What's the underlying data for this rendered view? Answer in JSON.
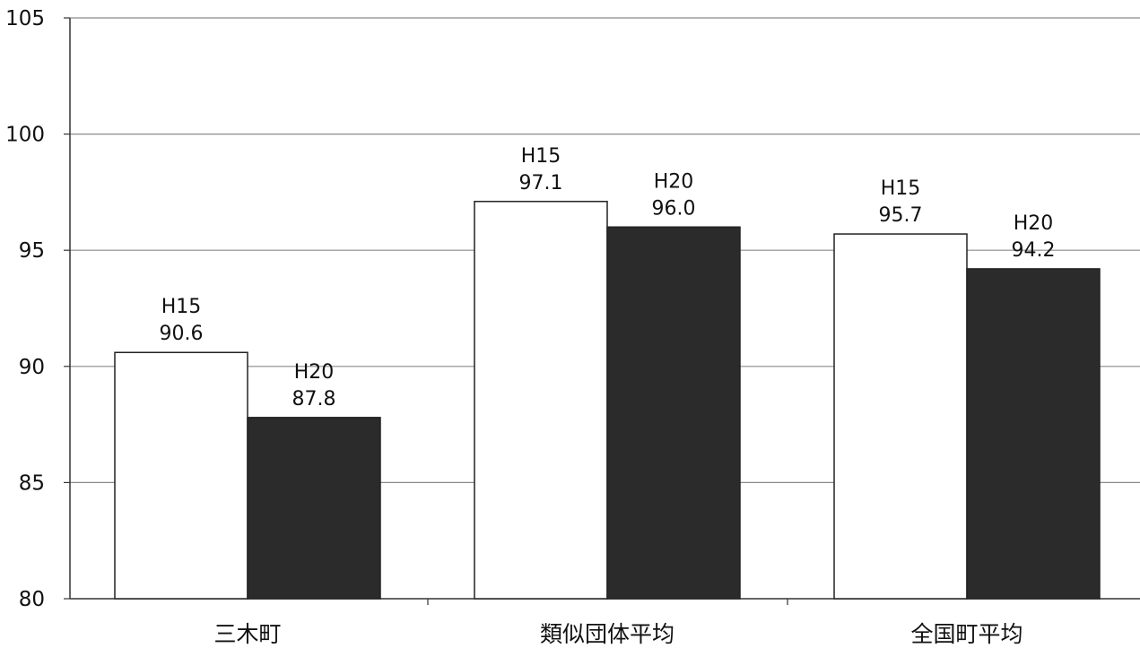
{
  "chart_data": {
    "type": "bar",
    "categories": [
      "三木町",
      "類似団体平均",
      "全国町平均"
    ],
    "series": [
      {
        "name": "H15",
        "values": [
          90.6,
          97.1,
          95.7
        ],
        "color": "#ffffff"
      },
      {
        "name": "H20",
        "values": [
          87.8,
          96.0,
          94.2
        ],
        "color": "#2b2b2b"
      }
    ],
    "data_labels": [
      [
        "H15",
        "90.6",
        "H20",
        "87.8"
      ],
      [
        "H15",
        "97.1",
        "H20",
        "96.0"
      ],
      [
        "H15",
        "95.7",
        "H20",
        "94.2"
      ]
    ],
    "ylim": [
      80,
      105
    ],
    "yticks": [
      80,
      85,
      90,
      95,
      100,
      105
    ],
    "ytick_labels": [
      "80",
      "85",
      "90",
      "95",
      "100",
      "105"
    ],
    "grid": true,
    "legend": "none",
    "title": "",
    "xlabel": "",
    "ylabel": ""
  }
}
